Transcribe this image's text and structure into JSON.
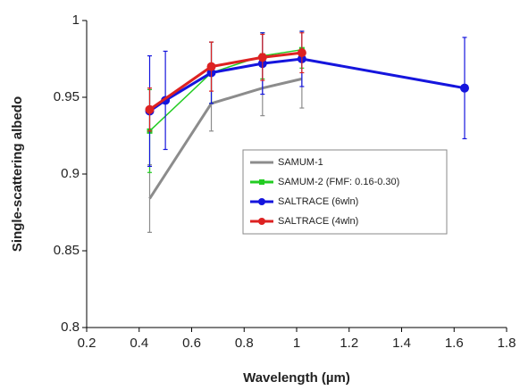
{
  "chart_data": {
    "type": "line",
    "x_label": "Wavelength (µm)",
    "y_label": "Single-scattering albedo",
    "xlim": [
      0.2,
      1.8
    ],
    "xticks": [
      0.2,
      0.4,
      0.6,
      0.8,
      1,
      1.2,
      1.4,
      1.6,
      1.8
    ],
    "ylim": [
      0.8,
      1
    ],
    "yticks": [
      0.8,
      0.85,
      0.9,
      0.95,
      1
    ],
    "grid": false,
    "series": [
      {
        "name": "SAMUM-1",
        "color": "#8c8c8c",
        "marker": "none",
        "x": [
          0.44,
          0.675,
          0.87,
          1.02
        ],
        "values": [
          0.884,
          0.946,
          0.956,
          0.962
        ],
        "errors": [
          0.022,
          0.018,
          0.018,
          0.019
        ]
      },
      {
        "name": "SAMUM-2 (FMF: 0.16-0.30)",
        "color": "#22cc22",
        "marker": "square",
        "x": [
          0.44,
          0.675,
          0.87,
          1.02
        ],
        "values": [
          0.928,
          0.966,
          0.977,
          0.981
        ],
        "errors": [
          0.027,
          0.02,
          0.015,
          0.012
        ]
      },
      {
        "name": "SALTRACE (6wln)",
        "color": "#1515dd",
        "marker": "circle",
        "x": [
          0.44,
          0.5,
          0.675,
          0.87,
          1.02,
          1.64
        ],
        "values": [
          0.941,
          0.948,
          0.966,
          0.972,
          0.975,
          0.956
        ],
        "errors": [
          0.036,
          0.032,
          0.02,
          0.02,
          0.018,
          0.033
        ]
      },
      {
        "name": "SALTRACE (4wln)",
        "color": "#dd2222",
        "marker": "circle",
        "x": [
          0.44,
          0.675,
          0.87,
          1.02
        ],
        "values": [
          0.942,
          0.97,
          0.976,
          0.979
        ],
        "errors": [
          0.014,
          0.016,
          0.015,
          0.013
        ]
      }
    ]
  }
}
